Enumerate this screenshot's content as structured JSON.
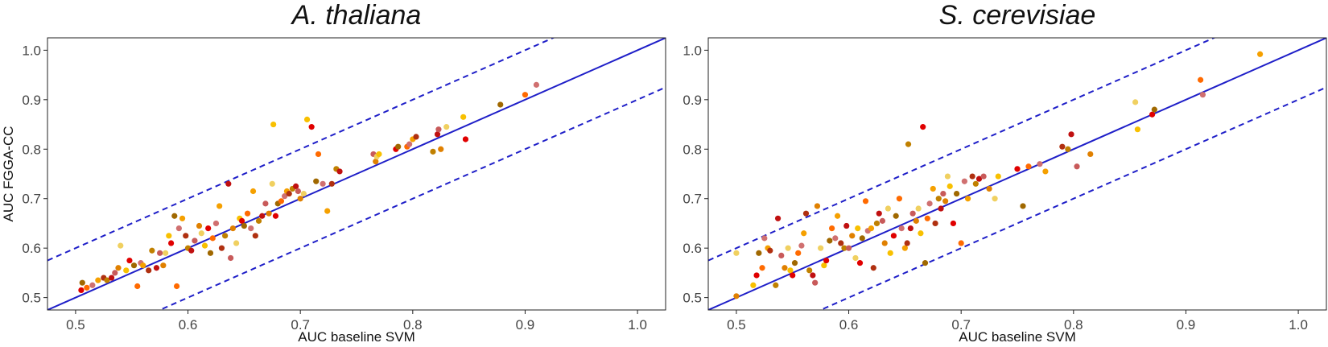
{
  "chart_data": [
    {
      "type": "scatter",
      "title": "A. thaliana",
      "xlabel": "AUC baseline SVM",
      "ylabel": "AUC FGGA-CC",
      "xlim": [
        0.475,
        1.025
      ],
      "ylim": [
        0.475,
        1.025
      ],
      "xticks": [
        "0.5",
        "0.6",
        "0.7",
        "0.8",
        "0.9",
        "1.0"
      ],
      "yticks": [
        "0.5",
        "0.6",
        "0.7",
        "0.8",
        "0.9",
        "1.0"
      ],
      "grid": false,
      "reference_lines": [
        {
          "style": "solid",
          "slope": 1,
          "intercept": 0.0
        },
        {
          "style": "dashed",
          "slope": 1,
          "intercept": 0.1
        },
        {
          "style": "dashed",
          "slope": 1,
          "intercept": -0.1
        }
      ],
      "line_color": "#1f1fc8",
      "points": [
        [
          0.505,
          0.515
        ],
        [
          0.506,
          0.53
        ],
        [
          0.51,
          0.52
        ],
        [
          0.515,
          0.525
        ],
        [
          0.52,
          0.535
        ],
        [
          0.525,
          0.54
        ],
        [
          0.528,
          0.535
        ],
        [
          0.532,
          0.54
        ],
        [
          0.535,
          0.55
        ],
        [
          0.538,
          0.56
        ],
        [
          0.54,
          0.605
        ],
        [
          0.545,
          0.555
        ],
        [
          0.548,
          0.575
        ],
        [
          0.552,
          0.565
        ],
        [
          0.555,
          0.523
        ],
        [
          0.558,
          0.57
        ],
        [
          0.56,
          0.565
        ],
        [
          0.565,
          0.555
        ],
        [
          0.568,
          0.595
        ],
        [
          0.572,
          0.56
        ],
        [
          0.575,
          0.59
        ],
        [
          0.578,
          0.565
        ],
        [
          0.58,
          0.59
        ],
        [
          0.583,
          0.625
        ],
        [
          0.585,
          0.61
        ],
        [
          0.588,
          0.665
        ],
        [
          0.59,
          0.523
        ],
        [
          0.592,
          0.64
        ],
        [
          0.595,
          0.66
        ],
        [
          0.598,
          0.625
        ],
        [
          0.6,
          0.6
        ],
        [
          0.603,
          0.595
        ],
        [
          0.606,
          0.615
        ],
        [
          0.61,
          0.645
        ],
        [
          0.612,
          0.63
        ],
        [
          0.615,
          0.605
        ],
        [
          0.618,
          0.64
        ],
        [
          0.62,
          0.59
        ],
        [
          0.622,
          0.62
        ],
        [
          0.625,
          0.65
        ],
        [
          0.628,
          0.685
        ],
        [
          0.63,
          0.6
        ],
        [
          0.633,
          0.625
        ],
        [
          0.636,
          0.73
        ],
        [
          0.638,
          0.58
        ],
        [
          0.64,
          0.64
        ],
        [
          0.643,
          0.61
        ],
        [
          0.646,
          0.66
        ],
        [
          0.648,
          0.655
        ],
        [
          0.65,
          0.645
        ],
        [
          0.653,
          0.67
        ],
        [
          0.656,
          0.64
        ],
        [
          0.658,
          0.715
        ],
        [
          0.66,
          0.625
        ],
        [
          0.663,
          0.655
        ],
        [
          0.666,
          0.665
        ],
        [
          0.669,
          0.69
        ],
        [
          0.672,
          0.67
        ],
        [
          0.675,
          0.73
        ],
        [
          0.676,
          0.85
        ],
        [
          0.678,
          0.665
        ],
        [
          0.68,
          0.69
        ],
        [
          0.683,
          0.695
        ],
        [
          0.686,
          0.705
        ],
        [
          0.688,
          0.715
        ],
        [
          0.69,
          0.71
        ],
        [
          0.693,
          0.72
        ],
        [
          0.696,
          0.725
        ],
        [
          0.698,
          0.715
        ],
        [
          0.7,
          0.7
        ],
        [
          0.703,
          0.71
        ],
        [
          0.706,
          0.86
        ],
        [
          0.71,
          0.845
        ],
        [
          0.714,
          0.735
        ],
        [
          0.716,
          0.79
        ],
        [
          0.72,
          0.73
        ],
        [
          0.724,
          0.675
        ],
        [
          0.728,
          0.73
        ],
        [
          0.732,
          0.76
        ],
        [
          0.735,
          0.755
        ],
        [
          0.765,
          0.79
        ],
        [
          0.767,
          0.775
        ],
        [
          0.768,
          0.785
        ],
        [
          0.77,
          0.79
        ],
        [
          0.785,
          0.8
        ],
        [
          0.787,
          0.805
        ],
        [
          0.795,
          0.805
        ],
        [
          0.797,
          0.81
        ],
        [
          0.8,
          0.82
        ],
        [
          0.803,
          0.825
        ],
        [
          0.818,
          0.795
        ],
        [
          0.822,
          0.83
        ],
        [
          0.823,
          0.84
        ],
        [
          0.825,
          0.8
        ],
        [
          0.83,
          0.845
        ],
        [
          0.845,
          0.865
        ],
        [
          0.847,
          0.82
        ],
        [
          0.878,
          0.89
        ],
        [
          0.9,
          0.91
        ],
        [
          0.91,
          0.93
        ]
      ]
    },
    {
      "type": "scatter",
      "title": "S. cerevisiae",
      "xlabel": "AUC baseline SVM",
      "ylabel": "",
      "xlim": [
        0.475,
        1.025
      ],
      "ylim": [
        0.475,
        1.025
      ],
      "xticks": [
        "0.5",
        "0.6",
        "0.7",
        "0.8",
        "0.9",
        "1.0"
      ],
      "yticks": [
        "0.5",
        "0.6",
        "0.7",
        "0.8",
        "0.9",
        "1.0"
      ],
      "grid": false,
      "reference_lines": [
        {
          "style": "solid",
          "slope": 1,
          "intercept": 0.0
        },
        {
          "style": "dashed",
          "slope": 1,
          "intercept": 0.1
        },
        {
          "style": "dashed",
          "slope": 1,
          "intercept": -0.1
        }
      ],
      "line_color": "#1f1fc8",
      "points": [
        [
          0.5,
          0.503
        ],
        [
          0.5,
          0.59
        ],
        [
          0.515,
          0.525
        ],
        [
          0.518,
          0.545
        ],
        [
          0.52,
          0.59
        ],
        [
          0.523,
          0.56
        ],
        [
          0.525,
          0.62
        ],
        [
          0.528,
          0.6
        ],
        [
          0.53,
          0.595
        ],
        [
          0.535,
          0.525
        ],
        [
          0.537,
          0.66
        ],
        [
          0.54,
          0.585
        ],
        [
          0.543,
          0.56
        ],
        [
          0.546,
          0.6
        ],
        [
          0.548,
          0.555
        ],
        [
          0.55,
          0.545
        ],
        [
          0.552,
          0.57
        ],
        [
          0.555,
          0.59
        ],
        [
          0.558,
          0.605
        ],
        [
          0.56,
          0.63
        ],
        [
          0.562,
          0.67
        ],
        [
          0.565,
          0.555
        ],
        [
          0.568,
          0.545
        ],
        [
          0.57,
          0.53
        ],
        [
          0.572,
          0.685
        ],
        [
          0.575,
          0.6
        ],
        [
          0.578,
          0.565
        ],
        [
          0.58,
          0.575
        ],
        [
          0.583,
          0.615
        ],
        [
          0.585,
          0.64
        ],
        [
          0.588,
          0.62
        ],
        [
          0.59,
          0.665
        ],
        [
          0.593,
          0.61
        ],
        [
          0.596,
          0.6
        ],
        [
          0.598,
          0.645
        ],
        [
          0.6,
          0.6
        ],
        [
          0.603,
          0.625
        ],
        [
          0.606,
          0.58
        ],
        [
          0.608,
          0.64
        ],
        [
          0.61,
          0.57
        ],
        [
          0.612,
          0.62
        ],
        [
          0.615,
          0.695
        ],
        [
          0.617,
          0.635
        ],
        [
          0.62,
          0.64
        ],
        [
          0.622,
          0.56
        ],
        [
          0.625,
          0.65
        ],
        [
          0.627,
          0.67
        ],
        [
          0.63,
          0.655
        ],
        [
          0.632,
          0.61
        ],
        [
          0.635,
          0.68
        ],
        [
          0.637,
          0.59
        ],
        [
          0.64,
          0.625
        ],
        [
          0.642,
          0.665
        ],
        [
          0.645,
          0.7
        ],
        [
          0.647,
          0.64
        ],
        [
          0.65,
          0.6
        ],
        [
          0.652,
          0.61
        ],
        [
          0.653,
          0.81
        ],
        [
          0.655,
          0.64
        ],
        [
          0.657,
          0.67
        ],
        [
          0.66,
          0.655
        ],
        [
          0.662,
          0.68
        ],
        [
          0.664,
          0.63
        ],
        [
          0.666,
          0.845
        ],
        [
          0.668,
          0.57
        ],
        [
          0.67,
          0.66
        ],
        [
          0.672,
          0.69
        ],
        [
          0.675,
          0.72
        ],
        [
          0.677,
          0.65
        ],
        [
          0.68,
          0.7
        ],
        [
          0.682,
          0.68
        ],
        [
          0.684,
          0.71
        ],
        [
          0.686,
          0.695
        ],
        [
          0.688,
          0.745
        ],
        [
          0.69,
          0.725
        ],
        [
          0.693,
          0.65
        ],
        [
          0.696,
          0.71
        ],
        [
          0.7,
          0.61
        ],
        [
          0.703,
          0.735
        ],
        [
          0.706,
          0.7
        ],
        [
          0.71,
          0.745
        ],
        [
          0.713,
          0.73
        ],
        [
          0.716,
          0.74
        ],
        [
          0.72,
          0.745
        ],
        [
          0.725,
          0.72
        ],
        [
          0.73,
          0.7
        ],
        [
          0.733,
          0.745
        ],
        [
          0.75,
          0.76
        ],
        [
          0.755,
          0.685
        ],
        [
          0.76,
          0.765
        ],
        [
          0.77,
          0.77
        ],
        [
          0.775,
          0.755
        ],
        [
          0.79,
          0.805
        ],
        [
          0.795,
          0.8
        ],
        [
          0.798,
          0.83
        ],
        [
          0.803,
          0.765
        ],
        [
          0.815,
          0.79
        ],
        [
          0.855,
          0.895
        ],
        [
          0.857,
          0.84
        ],
        [
          0.87,
          0.87
        ],
        [
          0.872,
          0.88
        ],
        [
          0.913,
          0.94
        ],
        [
          0.915,
          0.91
        ],
        [
          0.966,
          0.992
        ]
      ]
    }
  ],
  "palette": [
    "#e00000",
    "#c01010",
    "#ff6a00",
    "#e08000",
    "#f5a000",
    "#f8c000",
    "#c08000",
    "#a06800",
    "#c85a5a",
    "#d07070",
    "#f0d060",
    "#b03010"
  ]
}
